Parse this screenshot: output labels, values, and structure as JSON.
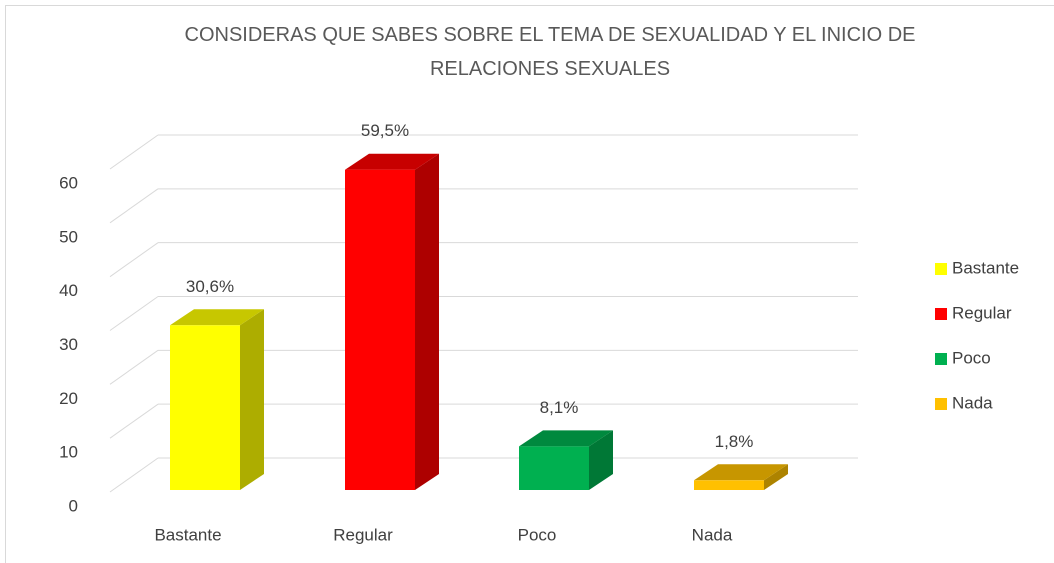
{
  "chart_data": {
    "type": "bar3d",
    "title": "CONSIDERAS QUE SABES SOBRE EL TEMA DE SEXUALIDAD Y EL INICIO DE RELACIONES SEXUALES",
    "categories": [
      "Bastante",
      "Regular",
      "Poco",
      "Nada"
    ],
    "values": [
      30.6,
      59.5,
      8.1,
      1.8
    ],
    "value_labels": [
      "30,6%",
      "59,5%",
      "8,1%",
      "1,8%"
    ],
    "colors": [
      "#ffff00",
      "#ff0000",
      "#00b050",
      "#ffc000"
    ],
    "ylim": [
      0,
      60
    ],
    "yticks": [
      0,
      10,
      20,
      30,
      40,
      50,
      60
    ],
    "grid": true,
    "legend": "right"
  }
}
